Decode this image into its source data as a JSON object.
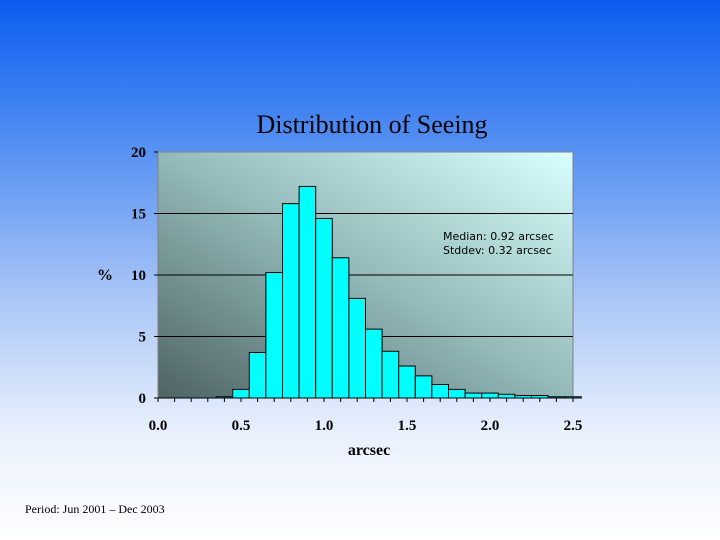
{
  "footnote": "Period: Jun 2001 – Dec 2003",
  "chart_data": {
    "type": "bar",
    "title": "Distribution of Seeing",
    "xlabel": "arcsec",
    "ylabel": "%",
    "xlim": [
      0.0,
      2.5
    ],
    "ylim": [
      0,
      20
    ],
    "xticks": [
      "0.0",
      "0.5",
      "1.0",
      "1.5",
      "2.0",
      "2.5"
    ],
    "yticks": [
      "0",
      "5",
      "10",
      "15",
      "20"
    ],
    "bin_width": 0.1,
    "bin_starts": [
      0.35,
      0.45,
      0.55,
      0.65,
      0.75,
      0.85,
      0.95,
      1.05,
      1.15,
      1.25,
      1.35,
      1.45,
      1.55,
      1.65,
      1.75,
      1.85,
      1.95,
      2.05,
      2.15,
      2.25,
      2.35,
      2.45
    ],
    "values": [
      0.1,
      0.7,
      3.7,
      10.2,
      15.8,
      17.2,
      14.6,
      11.4,
      8.1,
      5.6,
      3.8,
      2.6,
      1.8,
      1.1,
      0.7,
      0.4,
      0.4,
      0.3,
      0.2,
      0.2,
      0.1,
      0.1
    ],
    "grid": true,
    "annotations": [
      "Median:  0.92 arcsec",
      "Stddev:  0.32 arcsec"
    ],
    "colors": {
      "bar": "#00ffff",
      "bar_edge": "#000000"
    }
  }
}
